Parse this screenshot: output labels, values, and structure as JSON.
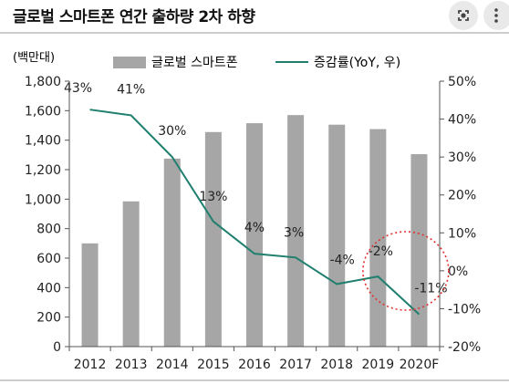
{
  "title": "글로벌 스마트폰 연간 출하량 2차 하향",
  "icons": {
    "lens": "google-lens-icon",
    "menu": "more-vert-icon"
  },
  "colors": {
    "bar": "#a6a6a6",
    "line": "#1e7f6e",
    "circle": "#e0312f",
    "text": "#222222"
  },
  "chart_data": {
    "type": "bar",
    "unit_label": "(백만대)",
    "categories": [
      "2012",
      "2013",
      "2014",
      "2015",
      "2016",
      "2017",
      "2018",
      "2019",
      "2020F"
    ],
    "left_axis": {
      "min": 0,
      "max": 1800,
      "ticks": [
        "0",
        "200",
        "400",
        "600",
        "800",
        "1,000",
        "1,200",
        "1,400",
        "1,600",
        "1,800"
      ]
    },
    "right_axis": {
      "min": -20,
      "max": 50,
      "ticks": [
        "-20%",
        "-10%",
        "0%",
        "10%",
        "20%",
        "30%",
        "40%",
        "50%"
      ]
    },
    "series": [
      {
        "name": "글로벌 스마트폰",
        "type": "bar",
        "axis": "left",
        "values": [
          700,
          985,
          1275,
          1455,
          1515,
          1570,
          1505,
          1475,
          1305
        ]
      },
      {
        "name": "증감률(YoY, 우)",
        "type": "line",
        "axis": "right",
        "values": [
          42.5,
          41,
          30,
          13,
          4.5,
          3.5,
          -3.5,
          -1.5,
          -11.5
        ],
        "labels": [
          "43%",
          "41%",
          "30%",
          "13%",
          "4%",
          "3%",
          "-4%",
          "-2%",
          "-11%"
        ]
      }
    ],
    "highlight": {
      "type": "dotted-ellipse",
      "categories": [
        "2019",
        "2020F"
      ]
    },
    "legend": "top",
    "grid": false
  }
}
